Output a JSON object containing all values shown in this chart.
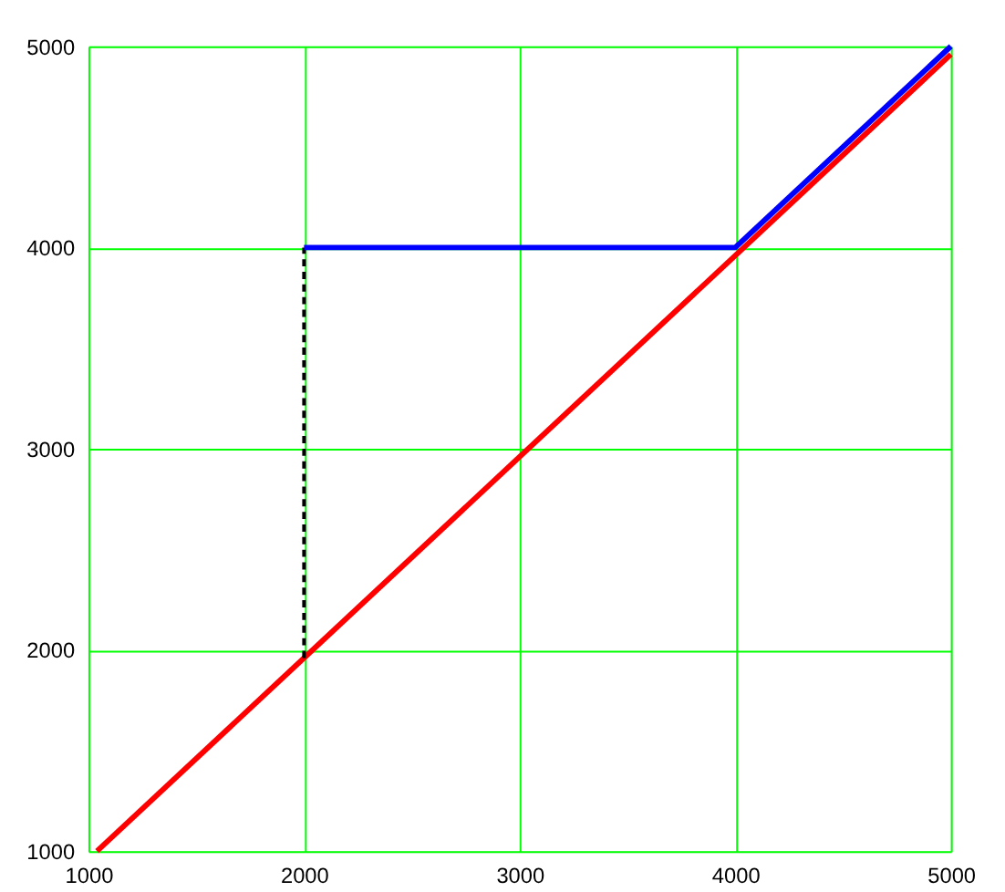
{
  "chart_data": {
    "type": "line",
    "xlim": [
      1000,
      5000
    ],
    "ylim": [
      1000,
      5000
    ],
    "xticks": [
      1000,
      2000,
      3000,
      4000,
      5000
    ],
    "yticks": [
      1000,
      2000,
      3000,
      4000,
      5000
    ],
    "grid": true,
    "marker": "none",
    "series": [
      {
        "color": "#ff0000",
        "x": [
          1040,
          5000
        ],
        "values": [
          1000,
          4960
        ],
        "line_style": "solid"
      },
      {
        "color": "#000000",
        "x": [
          2000,
          2000
        ],
        "values": [
          1960,
          4000
        ],
        "line_style": "dashed"
      },
      {
        "color": "#0000ff",
        "x": [
          2000,
          4000,
          5000
        ],
        "values": [
          4000,
          4000,
          5000
        ],
        "line_style": "solid"
      }
    ]
  }
}
